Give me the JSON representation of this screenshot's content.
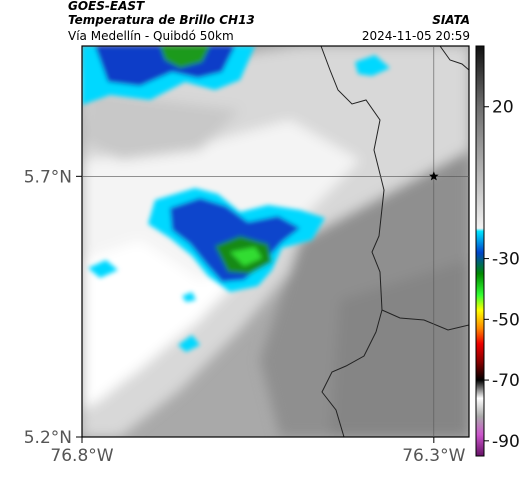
{
  "header": {
    "source": "GOES-EAST",
    "product": "Temperatura de Brillo CH13",
    "organization": "SIATA",
    "region": "Vía Medellín - Quibdó 50km",
    "timestamp": "2024-11-05 20:59"
  },
  "map": {
    "lon_range": [
      -76.8,
      -76.25
    ],
    "lat_range": [
      5.2,
      5.95
    ],
    "crosshair_lon": -76.3,
    "crosshair_lat": 5.7,
    "marker_icon": "star-icon",
    "x_ticks": [
      {
        "value": -76.8,
        "label": "76.8°W"
      },
      {
        "value": -76.3,
        "label": "76.3°W"
      }
    ],
    "y_ticks": [
      {
        "value": 5.7,
        "label": "5.7°N"
      },
      {
        "value": 5.2,
        "label": "5.2°N"
      }
    ]
  },
  "colorbar": {
    "range": [
      -95,
      40
    ],
    "ticks": [
      {
        "value": 20,
        "label": "20"
      },
      {
        "value": -30,
        "label": "-30"
      },
      {
        "value": -50,
        "label": "-50"
      },
      {
        "value": -70,
        "label": "-70"
      },
      {
        "value": -90,
        "label": "-90"
      }
    ],
    "stops": [
      {
        "value": 40,
        "color": "#111111"
      },
      {
        "value": 20,
        "color": "#6e6e6e"
      },
      {
        "value": -20,
        "color": "#f2f2f2"
      },
      {
        "value": -21,
        "color": "#00e5ff"
      },
      {
        "value": -28,
        "color": "#0044cc"
      },
      {
        "value": -35,
        "color": "#008a00"
      },
      {
        "value": -42,
        "color": "#33ff33"
      },
      {
        "value": -47,
        "color": "#ffff00"
      },
      {
        "value": -53,
        "color": "#ff8800"
      },
      {
        "value": -58,
        "color": "#ee0000"
      },
      {
        "value": -64,
        "color": "#880000"
      },
      {
        "value": -70,
        "color": "#000000"
      },
      {
        "value": -76,
        "color": "#ffffff"
      },
      {
        "value": -82,
        "color": "#aaaaaa"
      },
      {
        "value": -88,
        "color": "#cc55cc"
      },
      {
        "value": -95,
        "color": "#661166"
      }
    ]
  }
}
